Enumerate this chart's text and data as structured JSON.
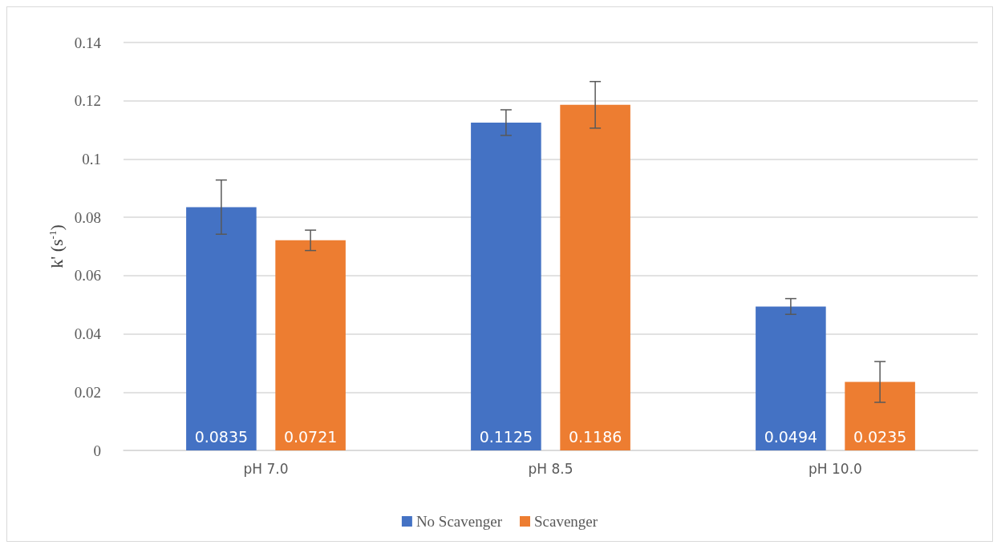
{
  "chart_data": {
    "type": "bar",
    "ylabel": "k' (s$^{-1}$)",
    "categories": [
      "pH 7.0",
      "pH 8.5",
      "pH 10.0"
    ],
    "series": [
      {
        "name": "No Scavenger",
        "color": "#4472c4",
        "values": [
          0.0835,
          0.1125,
          0.0494
        ],
        "errors": [
          0.0093,
          0.0044,
          0.0027
        ]
      },
      {
        "name": "Scavenger",
        "color": "#ed7d31",
        "values": [
          0.0721,
          0.1186,
          0.0235
        ],
        "errors": [
          0.0035,
          0.008,
          0.007
        ]
      }
    ],
    "ylim": [
      0,
      0.14
    ],
    "yticks": [
      0,
      0.02,
      0.04,
      0.06,
      0.08,
      0.1,
      0.12,
      0.14
    ],
    "grid": "y",
    "legend": "bottom",
    "data_labels": true
  }
}
